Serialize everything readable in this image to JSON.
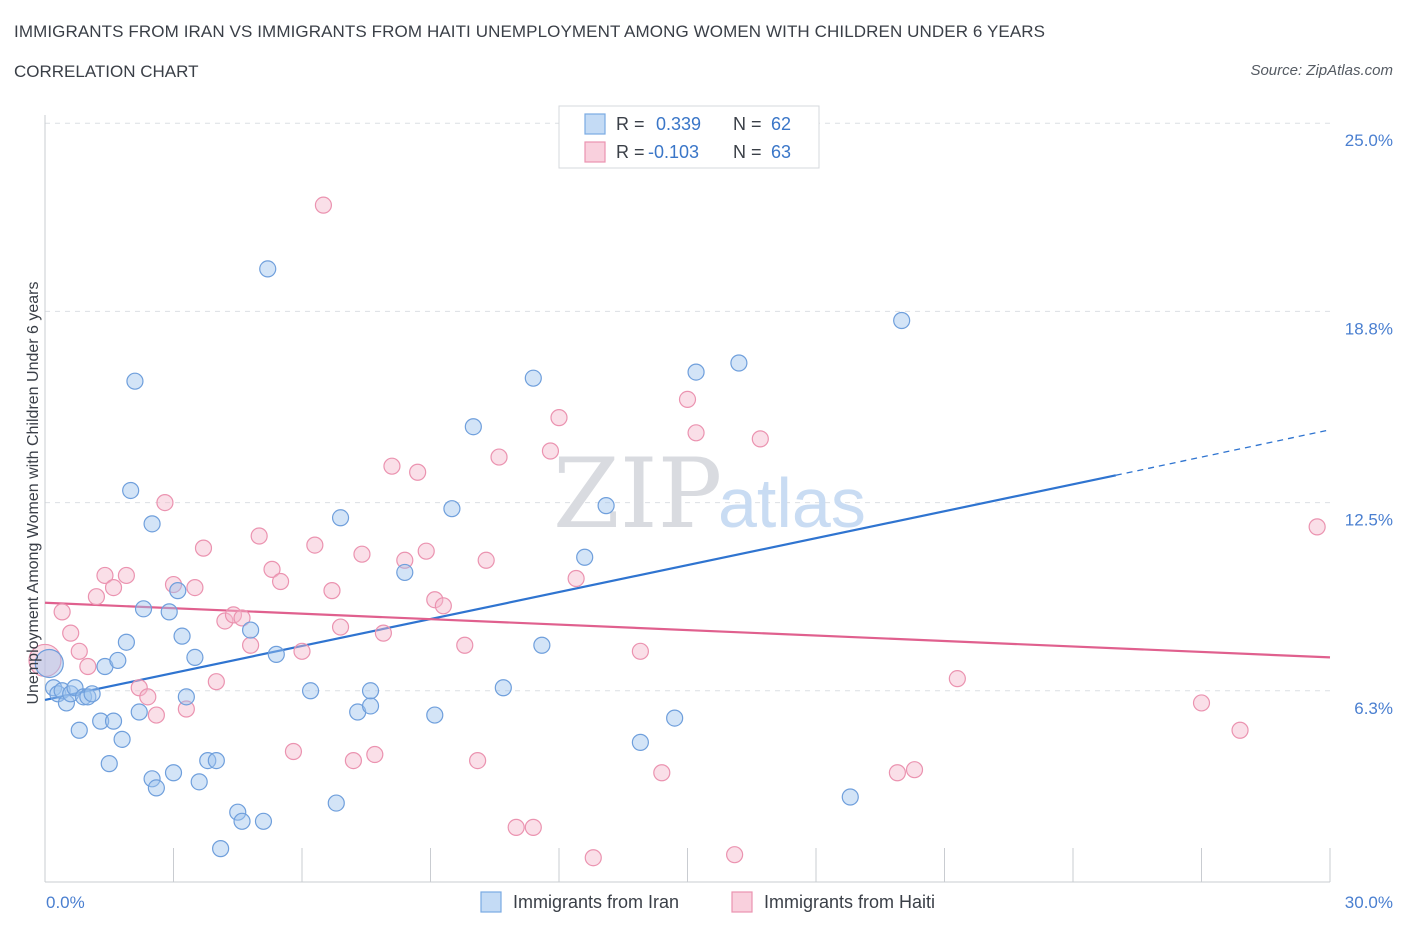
{
  "header": {
    "title": "IMMIGRANTS FROM IRAN VS IMMIGRANTS FROM HAITI UNEMPLOYMENT AMONG WOMEN WITH CHILDREN UNDER 6 YEARS",
    "subtitle": "CORRELATION CHART",
    "source": "Source: ZipAtlas.com"
  },
  "watermark": {
    "zip": "ZIP",
    "atlas": "atlas"
  },
  "legend": {
    "iran": {
      "r_label": "R =",
      "r_value": "0.339",
      "n_label": "N =",
      "n_value": "62"
    },
    "haiti": {
      "r_label": "R =",
      "r_value": "-0.103",
      "n_label": "N =",
      "n_value": "63"
    }
  },
  "chart_data": {
    "type": "scatter",
    "title": "IMMIGRANTS FROM IRAN VS IMMIGRANTS FROM HAITI UNEMPLOYMENT AMONG WOMEN WITH CHILDREN UNDER 6 YEARS",
    "xlabel": "",
    "ylabel": "Unemployment Among Women with Children Under 6 years",
    "xlim": [
      0,
      30
    ],
    "ylim": [
      0,
      25.6
    ],
    "x_tick_labels": [
      "0.0%",
      "30.0%"
    ],
    "y_ticks": [
      6.3,
      12.5,
      18.8,
      25.0
    ],
    "y_tick_labels": [
      "6.3%",
      "12.5%",
      "18.8%",
      "25.0%"
    ],
    "grid": "horizontal dashed",
    "legend_position": "top-center",
    "colors": {
      "iran": "#9dc3ee",
      "iran_line": "#2f74d0",
      "haiti": "#f5b8cb",
      "haiti_line": "#e0608e"
    },
    "series": [
      {
        "name": "Immigrants from Iran",
        "color": "#9dc3ee",
        "trend": {
          "x": [
            0.0,
            25.0
          ],
          "y": [
            6.0,
            13.4
          ],
          "dashed_to": [
            30.0,
            14.9
          ]
        },
        "points": [
          [
            0.2,
            6.4
          ],
          [
            0.3,
            6.2
          ],
          [
            0.4,
            6.3
          ],
          [
            0.5,
            5.9
          ],
          [
            0.6,
            6.2
          ],
          [
            0.7,
            6.4
          ],
          [
            0.8,
            5.0
          ],
          [
            0.9,
            6.1
          ],
          [
            1.0,
            6.1
          ],
          [
            1.1,
            6.2
          ],
          [
            1.3,
            5.3
          ],
          [
            1.4,
            7.1
          ],
          [
            1.5,
            3.9
          ],
          [
            1.6,
            5.3
          ],
          [
            1.7,
            7.3
          ],
          [
            1.8,
            4.7
          ],
          [
            1.9,
            7.9
          ],
          [
            2.0,
            12.9
          ],
          [
            2.1,
            16.5
          ],
          [
            2.2,
            5.6
          ],
          [
            2.3,
            9.0
          ],
          [
            2.5,
            11.8
          ],
          [
            2.5,
            3.4
          ],
          [
            2.6,
            3.1
          ],
          [
            2.9,
            8.9
          ],
          [
            3.0,
            3.6
          ],
          [
            3.1,
            9.6
          ],
          [
            3.2,
            8.1
          ],
          [
            3.3,
            6.1
          ],
          [
            3.5,
            7.4
          ],
          [
            3.6,
            3.3
          ],
          [
            3.8,
            4.0
          ],
          [
            4.0,
            4.0
          ],
          [
            4.1,
            1.1
          ],
          [
            4.5,
            2.3
          ],
          [
            4.6,
            2.0
          ],
          [
            4.8,
            8.3
          ],
          [
            5.1,
            2.0
          ],
          [
            5.2,
            20.2
          ],
          [
            5.4,
            7.5
          ],
          [
            6.2,
            6.3
          ],
          [
            6.8,
            2.6
          ],
          [
            6.9,
            12.0
          ],
          [
            7.3,
            5.6
          ],
          [
            7.6,
            5.8
          ],
          [
            7.6,
            6.3
          ],
          [
            8.4,
            10.2
          ],
          [
            9.1,
            5.5
          ],
          [
            9.5,
            12.3
          ],
          [
            10.0,
            15.0
          ],
          [
            10.7,
            6.4
          ],
          [
            11.4,
            16.6
          ],
          [
            11.6,
            7.8
          ],
          [
            12.6,
            10.7
          ],
          [
            13.1,
            12.4
          ],
          [
            13.9,
            4.6
          ],
          [
            14.7,
            5.4
          ],
          [
            15.2,
            16.8
          ],
          [
            16.2,
            17.1
          ],
          [
            18.8,
            2.8
          ],
          [
            20.0,
            18.5
          ],
          [
            0.1,
            7.2
          ]
        ]
      },
      {
        "name": "Immigrants from Haiti",
        "color": "#f5b8cb",
        "trend": {
          "x": [
            0.0,
            30.0
          ],
          "y": [
            9.2,
            7.4
          ]
        },
        "points": [
          [
            0.0,
            7.3
          ],
          [
            0.4,
            8.9
          ],
          [
            0.6,
            8.2
          ],
          [
            0.8,
            7.6
          ],
          [
            1.0,
            7.1
          ],
          [
            1.2,
            9.4
          ],
          [
            1.4,
            10.1
          ],
          [
            1.6,
            9.7
          ],
          [
            1.9,
            10.1
          ],
          [
            2.2,
            6.4
          ],
          [
            2.4,
            6.1
          ],
          [
            2.6,
            5.5
          ],
          [
            2.8,
            12.5
          ],
          [
            3.0,
            9.8
          ],
          [
            3.3,
            5.7
          ],
          [
            3.5,
            9.7
          ],
          [
            3.7,
            11.0
          ],
          [
            4.0,
            6.6
          ],
          [
            4.2,
            8.6
          ],
          [
            4.4,
            8.8
          ],
          [
            4.6,
            8.7
          ],
          [
            4.8,
            7.8
          ],
          [
            5.0,
            11.4
          ],
          [
            5.3,
            10.3
          ],
          [
            5.5,
            9.9
          ],
          [
            5.8,
            4.3
          ],
          [
            6.0,
            7.6
          ],
          [
            6.3,
            11.1
          ],
          [
            6.5,
            22.3
          ],
          [
            6.7,
            9.6
          ],
          [
            6.9,
            8.4
          ],
          [
            7.2,
            4.0
          ],
          [
            7.4,
            10.8
          ],
          [
            7.7,
            4.2
          ],
          [
            7.9,
            8.2
          ],
          [
            8.1,
            13.7
          ],
          [
            8.4,
            10.6
          ],
          [
            8.7,
            13.5
          ],
          [
            8.9,
            10.9
          ],
          [
            9.1,
            9.3
          ],
          [
            9.3,
            9.1
          ],
          [
            9.8,
            7.8
          ],
          [
            10.1,
            4.0
          ],
          [
            10.3,
            10.6
          ],
          [
            10.6,
            14.0
          ],
          [
            11.0,
            1.8
          ],
          [
            11.4,
            1.8
          ],
          [
            11.8,
            14.2
          ],
          [
            12.0,
            15.3
          ],
          [
            12.4,
            10.0
          ],
          [
            12.8,
            0.8
          ],
          [
            13.9,
            7.6
          ],
          [
            14.4,
            3.6
          ],
          [
            15.0,
            15.9
          ],
          [
            15.2,
            14.8
          ],
          [
            16.1,
            0.9
          ],
          [
            16.7,
            14.6
          ],
          [
            19.9,
            3.6
          ],
          [
            20.3,
            3.7
          ],
          [
            21.3,
            6.7
          ],
          [
            27.0,
            5.9
          ],
          [
            27.9,
            5.0
          ],
          [
            29.7,
            11.7
          ]
        ]
      }
    ]
  },
  "bottom_legend": {
    "iran_label": "Immigrants from Iran",
    "haiti_label": "Immigrants from Haiti"
  }
}
